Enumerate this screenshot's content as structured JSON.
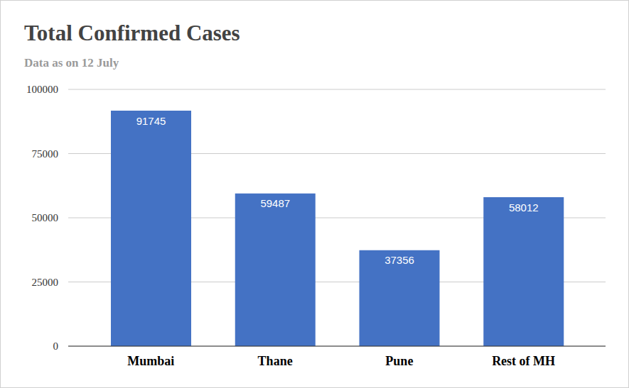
{
  "chart_data": {
    "type": "bar",
    "title": "Total Confirmed Cases",
    "subtitle": "Data as on 12 July",
    "categories": [
      "Mumbai",
      "Thane",
      "Pune",
      "Rest of MH"
    ],
    "values": [
      91745,
      59487,
      37356,
      58012
    ],
    "color": "#4472c4",
    "ylim": [
      0,
      100000
    ],
    "yticks": [
      0,
      25000,
      50000,
      75000,
      100000
    ],
    "grid": true,
    "data_labels": true
  }
}
